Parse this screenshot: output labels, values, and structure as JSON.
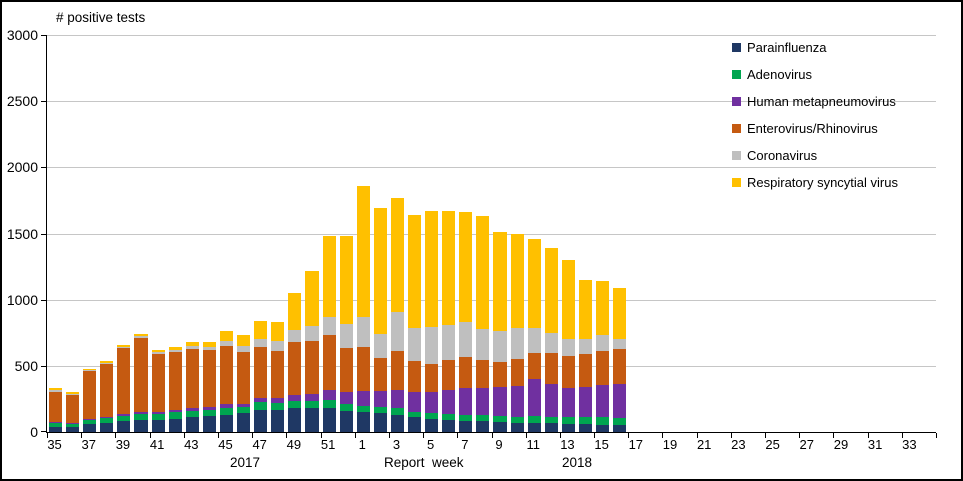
{
  "chart_data": {
    "type": "bar",
    "stacked": true,
    "title": "# positive tests",
    "xlabel": "Report  week",
    "grid": true,
    "gridline_color": "#c6c6c6",
    "axis_color": "#000000",
    "legend_position": "top-right",
    "ylim": [
      0,
      3000
    ],
    "ytick_interval": 500,
    "yticks": [
      0,
      500,
      1000,
      1500,
      2000,
      2500,
      3000
    ],
    "label_every": 2,
    "categories": [
      "35",
      "36",
      "37",
      "38",
      "39",
      "40",
      "41",
      "42",
      "43",
      "44",
      "45",
      "46",
      "47",
      "48",
      "49",
      "50",
      "51",
      "52",
      "1",
      "2",
      "3",
      "4",
      "5",
      "6",
      "7",
      "8",
      "9",
      "10",
      "11",
      "12",
      "13",
      "14",
      "15",
      "16",
      "17",
      "18",
      "19",
      "20",
      "21",
      "22",
      "23",
      "24",
      "25",
      "26",
      "27",
      "28",
      "29",
      "30",
      "31",
      "32",
      "33",
      "34"
    ],
    "series": [
      {
        "name": "Parainfluenza",
        "color": "#1f3864",
        "values": [
          40,
          35,
          60,
          70,
          80,
          90,
          90,
          100,
          110,
          120,
          130,
          140,
          170,
          170,
          180,
          180,
          180,
          160,
          150,
          140,
          130,
          110,
          100,
          90,
          85,
          80,
          75,
          70,
          70,
          65,
          60,
          60,
          55,
          50,
          0,
          0,
          0,
          0,
          0,
          0,
          0,
          0,
          0,
          0,
          0,
          0,
          0,
          0,
          0,
          0,
          0,
          0
        ]
      },
      {
        "name": "Adenovirus",
        "color": "#00a550",
        "values": [
          25,
          25,
          30,
          35,
          40,
          45,
          45,
          50,
          50,
          50,
          55,
          50,
          55,
          50,
          55,
          55,
          60,
          55,
          50,
          50,
          50,
          45,
          45,
          45,
          45,
          45,
          45,
          45,
          50,
          50,
          50,
          50,
          55,
          55,
          0,
          0,
          0,
          0,
          0,
          0,
          0,
          0,
          0,
          0,
          0,
          0,
          0,
          0,
          0,
          0,
          0,
          0
        ]
      },
      {
        "name": "Human metapneumovirus",
        "color": "#7030a0",
        "values": [
          10,
          10,
          10,
          10,
          15,
          15,
          15,
          15,
          20,
          20,
          25,
          25,
          30,
          35,
          45,
          55,
          75,
          90,
          110,
          120,
          140,
          150,
          160,
          180,
          200,
          210,
          220,
          230,
          280,
          245,
          220,
          230,
          245,
          255,
          0,
          0,
          0,
          0,
          0,
          0,
          0,
          0,
          0,
          0,
          0,
          0,
          0,
          0,
          0,
          0,
          0,
          0
        ]
      },
      {
        "name": "Enterovirus/Rhinovirus",
        "color": "#c55a11",
        "values": [
          230,
          210,
          360,
          400,
          500,
          560,
          440,
          440,
          450,
          430,
          440,
          390,
          390,
          360,
          400,
          400,
          420,
          330,
          330,
          250,
          290,
          230,
          210,
          230,
          240,
          210,
          190,
          210,
          200,
          235,
          245,
          250,
          255,
          265,
          0,
          0,
          0,
          0,
          0,
          0,
          0,
          0,
          0,
          0,
          0,
          0,
          0,
          0,
          0,
          0,
          0,
          0
        ]
      },
      {
        "name": "Coronavirus",
        "color": "#bfbfbf",
        "values": [
          10,
          10,
          10,
          10,
          10,
          15,
          15,
          15,
          20,
          25,
          40,
          45,
          60,
          70,
          90,
          110,
          135,
          180,
          230,
          180,
          300,
          250,
          280,
          265,
          265,
          235,
          230,
          230,
          185,
          150,
          125,
          110,
          120,
          80,
          0,
          0,
          0,
          0,
          0,
          0,
          0,
          0,
          0,
          0,
          0,
          0,
          0,
          0,
          0,
          0,
          0,
          0
        ]
      },
      {
        "name": "Respiratory syncytial virus",
        "color": "#ffc000",
        "values": [
          15,
          10,
          10,
          15,
          15,
          15,
          15,
          20,
          30,
          35,
          70,
          80,
          135,
          145,
          280,
          420,
          610,
          665,
          990,
          950,
          860,
          855,
          875,
          860,
          825,
          850,
          750,
          715,
          675,
          645,
          600,
          450,
          410,
          385,
          0,
          0,
          0,
          0,
          0,
          0,
          0,
          0,
          0,
          0,
          0,
          0,
          0,
          0,
          0,
          0,
          0,
          0
        ]
      }
    ]
  },
  "footer": {
    "year_left": "2017",
    "xlabel": "Report  week",
    "year_right": "2018"
  }
}
